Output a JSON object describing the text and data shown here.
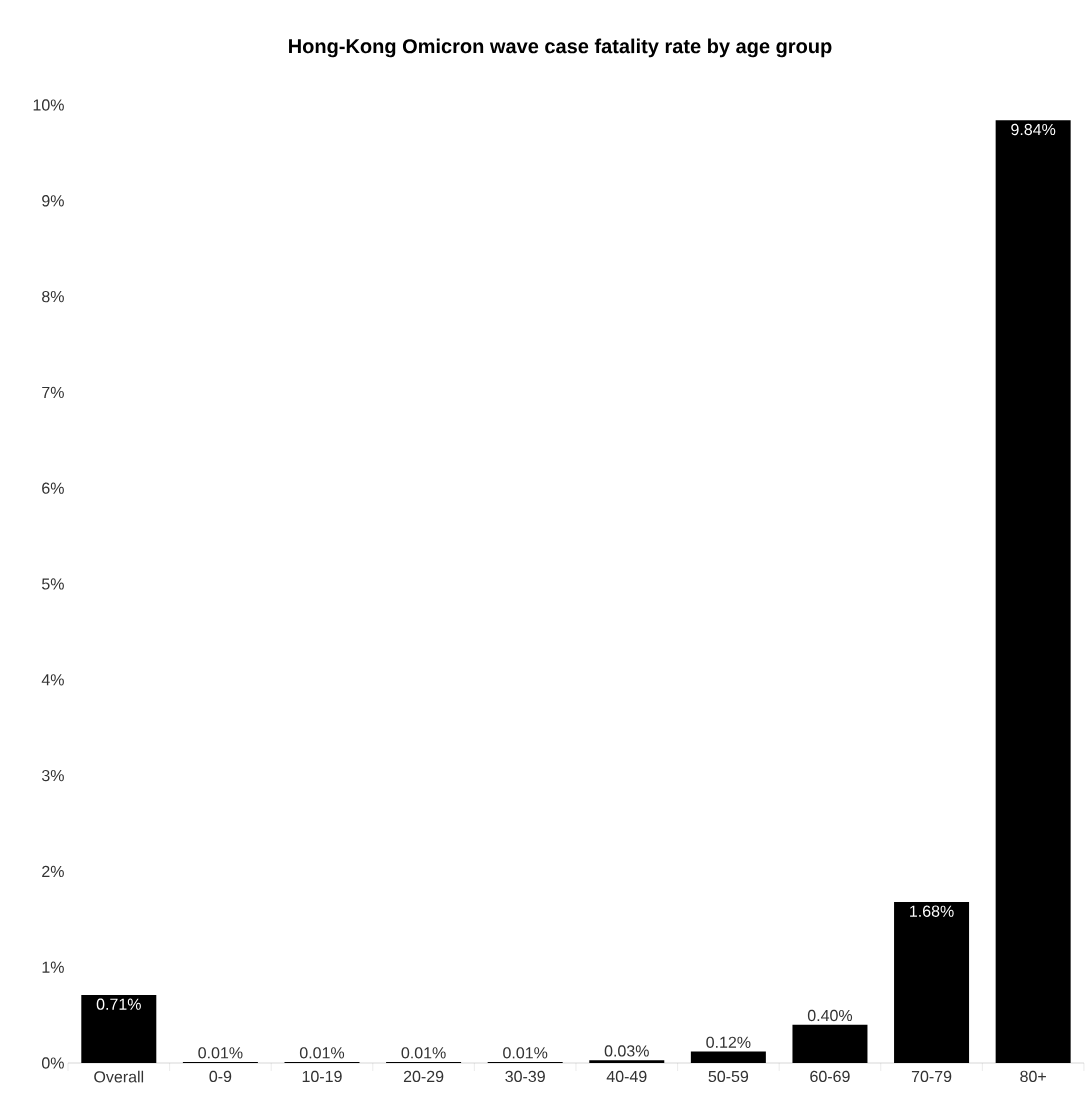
{
  "chart_data": {
    "type": "bar",
    "title": "**Hong-Kong Omicron wave case fatality rate by age group**",
    "categories": [
      "Overall",
      "0-9",
      "10-19",
      "20-29",
      "30-39",
      "40-49",
      "50-59",
      "60-69",
      "70-79",
      "80+"
    ],
    "values": [
      0.71,
      0.01,
      0.01,
      0.01,
      0.01,
      0.03,
      0.12,
      0.4,
      1.68,
      9.84
    ],
    "value_labels": [
      "0.71%",
      "0.01%",
      "0.01%",
      "0.01%",
      "0.01%",
      "0.03%",
      "0.12%",
      "0.40%",
      "1.68%",
      "9.84%"
    ],
    "color": "#000000",
    "ylim": [
      0,
      10
    ],
    "yticks": [
      {
        "value": 0,
        "label": "0%"
      },
      {
        "value": 1,
        "label": "1%"
      },
      {
        "value": 2,
        "label": "2%"
      },
      {
        "value": 3,
        "label": "3%"
      },
      {
        "value": 4,
        "label": "4%"
      },
      {
        "value": 5,
        "label": "5%"
      },
      {
        "value": 6,
        "label": "6%"
      },
      {
        "value": 7,
        "label": "7%"
      },
      {
        "value": 8,
        "label": "8%"
      },
      {
        "value": 9,
        "label": "9%"
      },
      {
        "value": 10,
        "label": "10%"
      }
    ],
    "grid": false
  }
}
